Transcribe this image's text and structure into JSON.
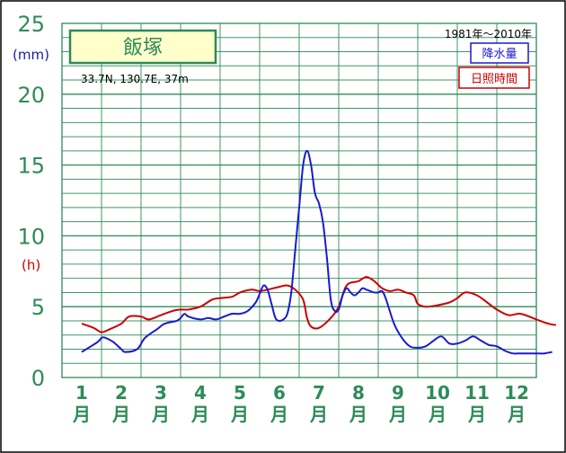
{
  "chart_data": {
    "type": "line",
    "station_name": "飯塚",
    "location": "33.7N,  130.7E,  37m",
    "period": "1981年～2010年",
    "y_unit_precip": "(mm)",
    "y_unit_sun": "(h)",
    "ylim": [
      0,
      25
    ],
    "yticks": [
      "0",
      "5",
      "10",
      "15",
      "20",
      "25"
    ],
    "months": [
      "1",
      "2",
      "3",
      "4",
      "5",
      "6",
      "7",
      "8",
      "9",
      "10",
      "11",
      "12"
    ],
    "month_suffix": "月",
    "grid": true,
    "legend_position": "top-right",
    "series": [
      {
        "name": "降水量",
        "color": "#1a1acc",
        "x": [
          0.5,
          0.9,
          1.0,
          1.1,
          1.3,
          1.5,
          1.6,
          1.9,
          2.1,
          2.4,
          2.6,
          2.9,
          3.0,
          3.1,
          3.2,
          3.5,
          3.7,
          3.9,
          4.1,
          4.3,
          4.5,
          4.7,
          4.9,
          5.0,
          5.1,
          5.2,
          5.3,
          5.4,
          5.5,
          5.6,
          5.7,
          5.8,
          5.9,
          6.0,
          6.1,
          6.2,
          6.3,
          6.4,
          6.5,
          6.6,
          6.7,
          6.8,
          6.9,
          7.0,
          7.1,
          7.2,
          7.3,
          7.4,
          7.5,
          7.6,
          7.7,
          7.8,
          7.9,
          8.0,
          8.1,
          8.2,
          8.4,
          8.6,
          8.8,
          9.0,
          9.2,
          9.4,
          9.6,
          9.8,
          10.0,
          10.2,
          10.4,
          10.6,
          10.8,
          11.0,
          11.2,
          11.4,
          11.6,
          11.8,
          12.0,
          12.2,
          12.4
        ],
        "values": [
          1.8,
          2.5,
          2.8,
          2.8,
          2.5,
          2.0,
          1.8,
          2.0,
          2.8,
          3.4,
          3.8,
          4.0,
          4.2,
          4.5,
          4.3,
          4.1,
          4.2,
          4.1,
          4.3,
          4.5,
          4.5,
          4.7,
          5.3,
          5.9,
          6.5,
          6.2,
          5.2,
          4.2,
          4.0,
          4.1,
          4.5,
          6.0,
          9.0,
          12.0,
          15.0,
          16.0,
          15.0,
          13.0,
          12.3,
          11.0,
          8.5,
          5.5,
          4.7,
          4.8,
          5.8,
          6.3,
          6.0,
          5.8,
          6.0,
          6.3,
          6.2,
          6.1,
          6.0,
          6.0,
          6.1,
          5.5,
          3.8,
          2.8,
          2.2,
          2.1,
          2.2,
          2.6,
          2.9,
          2.4,
          2.4,
          2.6,
          2.9,
          2.6,
          2.3,
          2.2,
          1.9,
          1.7,
          1.7,
          1.7,
          1.7,
          1.7,
          1.8
        ],
        "legend_label": "降水量"
      },
      {
        "name": "日照時間",
        "color": "#cc0000",
        "x": [
          0.5,
          0.8,
          1.0,
          1.2,
          1.5,
          1.7,
          2.0,
          2.2,
          2.5,
          2.8,
          3.0,
          3.2,
          3.5,
          3.8,
          4.0,
          4.3,
          4.5,
          4.8,
          5.0,
          5.2,
          5.5,
          5.7,
          5.9,
          6.1,
          6.2,
          6.3,
          6.5,
          6.8,
          7.0,
          7.2,
          7.5,
          7.7,
          7.9,
          8.1,
          8.3,
          8.5,
          8.7,
          8.9,
          9.0,
          9.2,
          9.5,
          9.8,
          10.0,
          10.2,
          10.5,
          10.8,
          11.0,
          11.3,
          11.6,
          12.0,
          12.3,
          12.5
        ],
        "values": [
          3.8,
          3.5,
          3.2,
          3.4,
          3.8,
          4.3,
          4.3,
          4.1,
          4.4,
          4.7,
          4.8,
          4.8,
          5.0,
          5.5,
          5.6,
          5.7,
          6.0,
          6.2,
          6.1,
          6.2,
          6.4,
          6.5,
          6.2,
          5.5,
          4.2,
          3.6,
          3.5,
          4.2,
          5.0,
          6.5,
          6.8,
          7.1,
          6.8,
          6.3,
          6.1,
          6.2,
          6.0,
          5.8,
          5.2,
          5.0,
          5.1,
          5.3,
          5.6,
          6.0,
          5.8,
          5.2,
          4.8,
          4.4,
          4.5,
          4.1,
          3.8,
          3.7
        ]
      }
    ]
  }
}
